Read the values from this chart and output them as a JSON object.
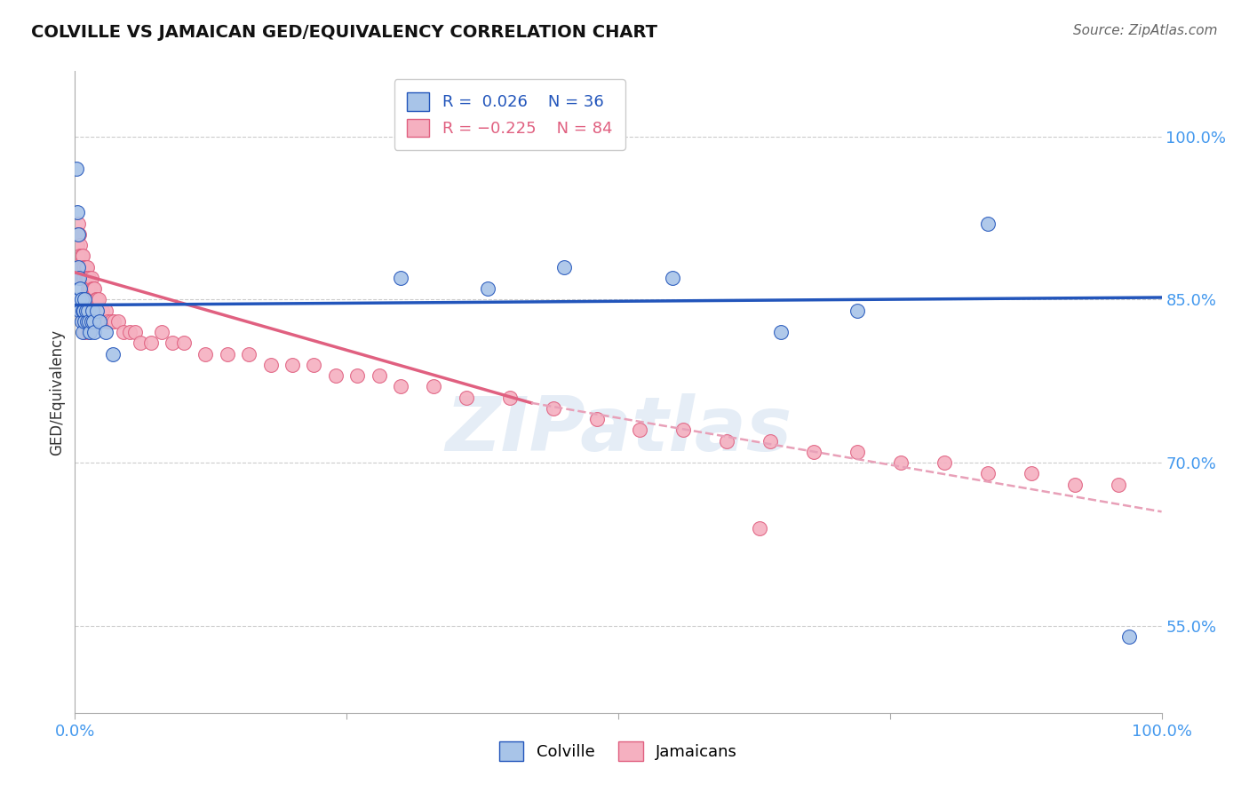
{
  "title": "COLVILLE VS JAMAICAN GED/EQUIVALENCY CORRELATION CHART",
  "source": "Source: ZipAtlas.com",
  "ylabel": "GED/Equivalency",
  "xlim": [
    0.0,
    1.0
  ],
  "ylim": [
    0.47,
    1.06
  ],
  "yticks": [
    0.55,
    0.7,
    0.85,
    1.0
  ],
  "ytick_labels": [
    "55.0%",
    "70.0%",
    "85.0%",
    "100.0%"
  ],
  "blue_R": 0.026,
  "blue_N": 36,
  "pink_R": -0.225,
  "pink_N": 84,
  "blue_color": "#a8c4e8",
  "pink_color": "#f5b0c0",
  "blue_line_color": "#2255bb",
  "pink_line_color": "#e06080",
  "pink_line_color_dashed": "#e8a0b8",
  "background_color": "#ffffff",
  "grid_color": "#cccccc",
  "title_color": "#111111",
  "legend_label_blue": "Colville",
  "legend_label_pink": "Jamaicans",
  "blue_line_start_y": 0.845,
  "blue_line_end_y": 0.852,
  "pink_line_start_y": 0.875,
  "pink_line_solid_end_x": 0.42,
  "pink_line_solid_end_y": 0.755,
  "pink_line_end_y": 0.655,
  "blue_x": [
    0.001,
    0.002,
    0.003,
    0.003,
    0.004,
    0.004,
    0.005,
    0.005,
    0.006,
    0.006,
    0.007,
    0.007,
    0.008,
    0.009,
    0.009,
    0.01,
    0.011,
    0.012,
    0.013,
    0.014,
    0.015,
    0.016,
    0.017,
    0.018,
    0.02,
    0.023,
    0.028,
    0.035,
    0.3,
    0.38,
    0.45,
    0.55,
    0.65,
    0.72,
    0.84,
    0.97
  ],
  "blue_y": [
    0.97,
    0.93,
    0.91,
    0.88,
    0.87,
    0.85,
    0.86,
    0.84,
    0.85,
    0.83,
    0.84,
    0.82,
    0.84,
    0.83,
    0.85,
    0.84,
    0.83,
    0.84,
    0.83,
    0.82,
    0.83,
    0.84,
    0.83,
    0.82,
    0.84,
    0.83,
    0.82,
    0.8,
    0.87,
    0.86,
    0.88,
    0.87,
    0.82,
    0.84,
    0.92,
    0.54
  ],
  "pink_x": [
    0.001,
    0.001,
    0.002,
    0.002,
    0.003,
    0.003,
    0.003,
    0.004,
    0.004,
    0.004,
    0.005,
    0.005,
    0.005,
    0.006,
    0.006,
    0.007,
    0.007,
    0.008,
    0.008,
    0.009,
    0.009,
    0.01,
    0.01,
    0.011,
    0.011,
    0.012,
    0.012,
    0.013,
    0.014,
    0.015,
    0.016,
    0.017,
    0.018,
    0.019,
    0.02,
    0.022,
    0.025,
    0.028,
    0.03,
    0.033,
    0.036,
    0.04,
    0.045,
    0.05,
    0.055,
    0.06,
    0.07,
    0.08,
    0.09,
    0.1,
    0.12,
    0.14,
    0.16,
    0.18,
    0.2,
    0.22,
    0.24,
    0.26,
    0.28,
    0.3,
    0.33,
    0.36,
    0.4,
    0.44,
    0.48,
    0.52,
    0.56,
    0.6,
    0.64,
    0.68,
    0.72,
    0.76,
    0.8,
    0.84,
    0.88,
    0.92,
    0.96,
    0.007,
    0.008,
    0.009,
    0.01,
    0.012,
    0.015,
    0.63
  ],
  "pink_y": [
    0.9,
    0.88,
    0.9,
    0.88,
    0.92,
    0.91,
    0.89,
    0.91,
    0.89,
    0.88,
    0.9,
    0.89,
    0.87,
    0.89,
    0.88,
    0.89,
    0.87,
    0.88,
    0.87,
    0.88,
    0.87,
    0.88,
    0.87,
    0.88,
    0.87,
    0.87,
    0.86,
    0.87,
    0.86,
    0.87,
    0.86,
    0.86,
    0.86,
    0.85,
    0.85,
    0.85,
    0.84,
    0.84,
    0.83,
    0.83,
    0.83,
    0.83,
    0.82,
    0.82,
    0.82,
    0.81,
    0.81,
    0.82,
    0.81,
    0.81,
    0.8,
    0.8,
    0.8,
    0.79,
    0.79,
    0.79,
    0.78,
    0.78,
    0.78,
    0.77,
    0.77,
    0.76,
    0.76,
    0.75,
    0.74,
    0.73,
    0.73,
    0.72,
    0.72,
    0.71,
    0.71,
    0.7,
    0.7,
    0.69,
    0.69,
    0.68,
    0.68,
    0.84,
    0.83,
    0.82,
    0.83,
    0.82,
    0.83,
    0.64
  ]
}
